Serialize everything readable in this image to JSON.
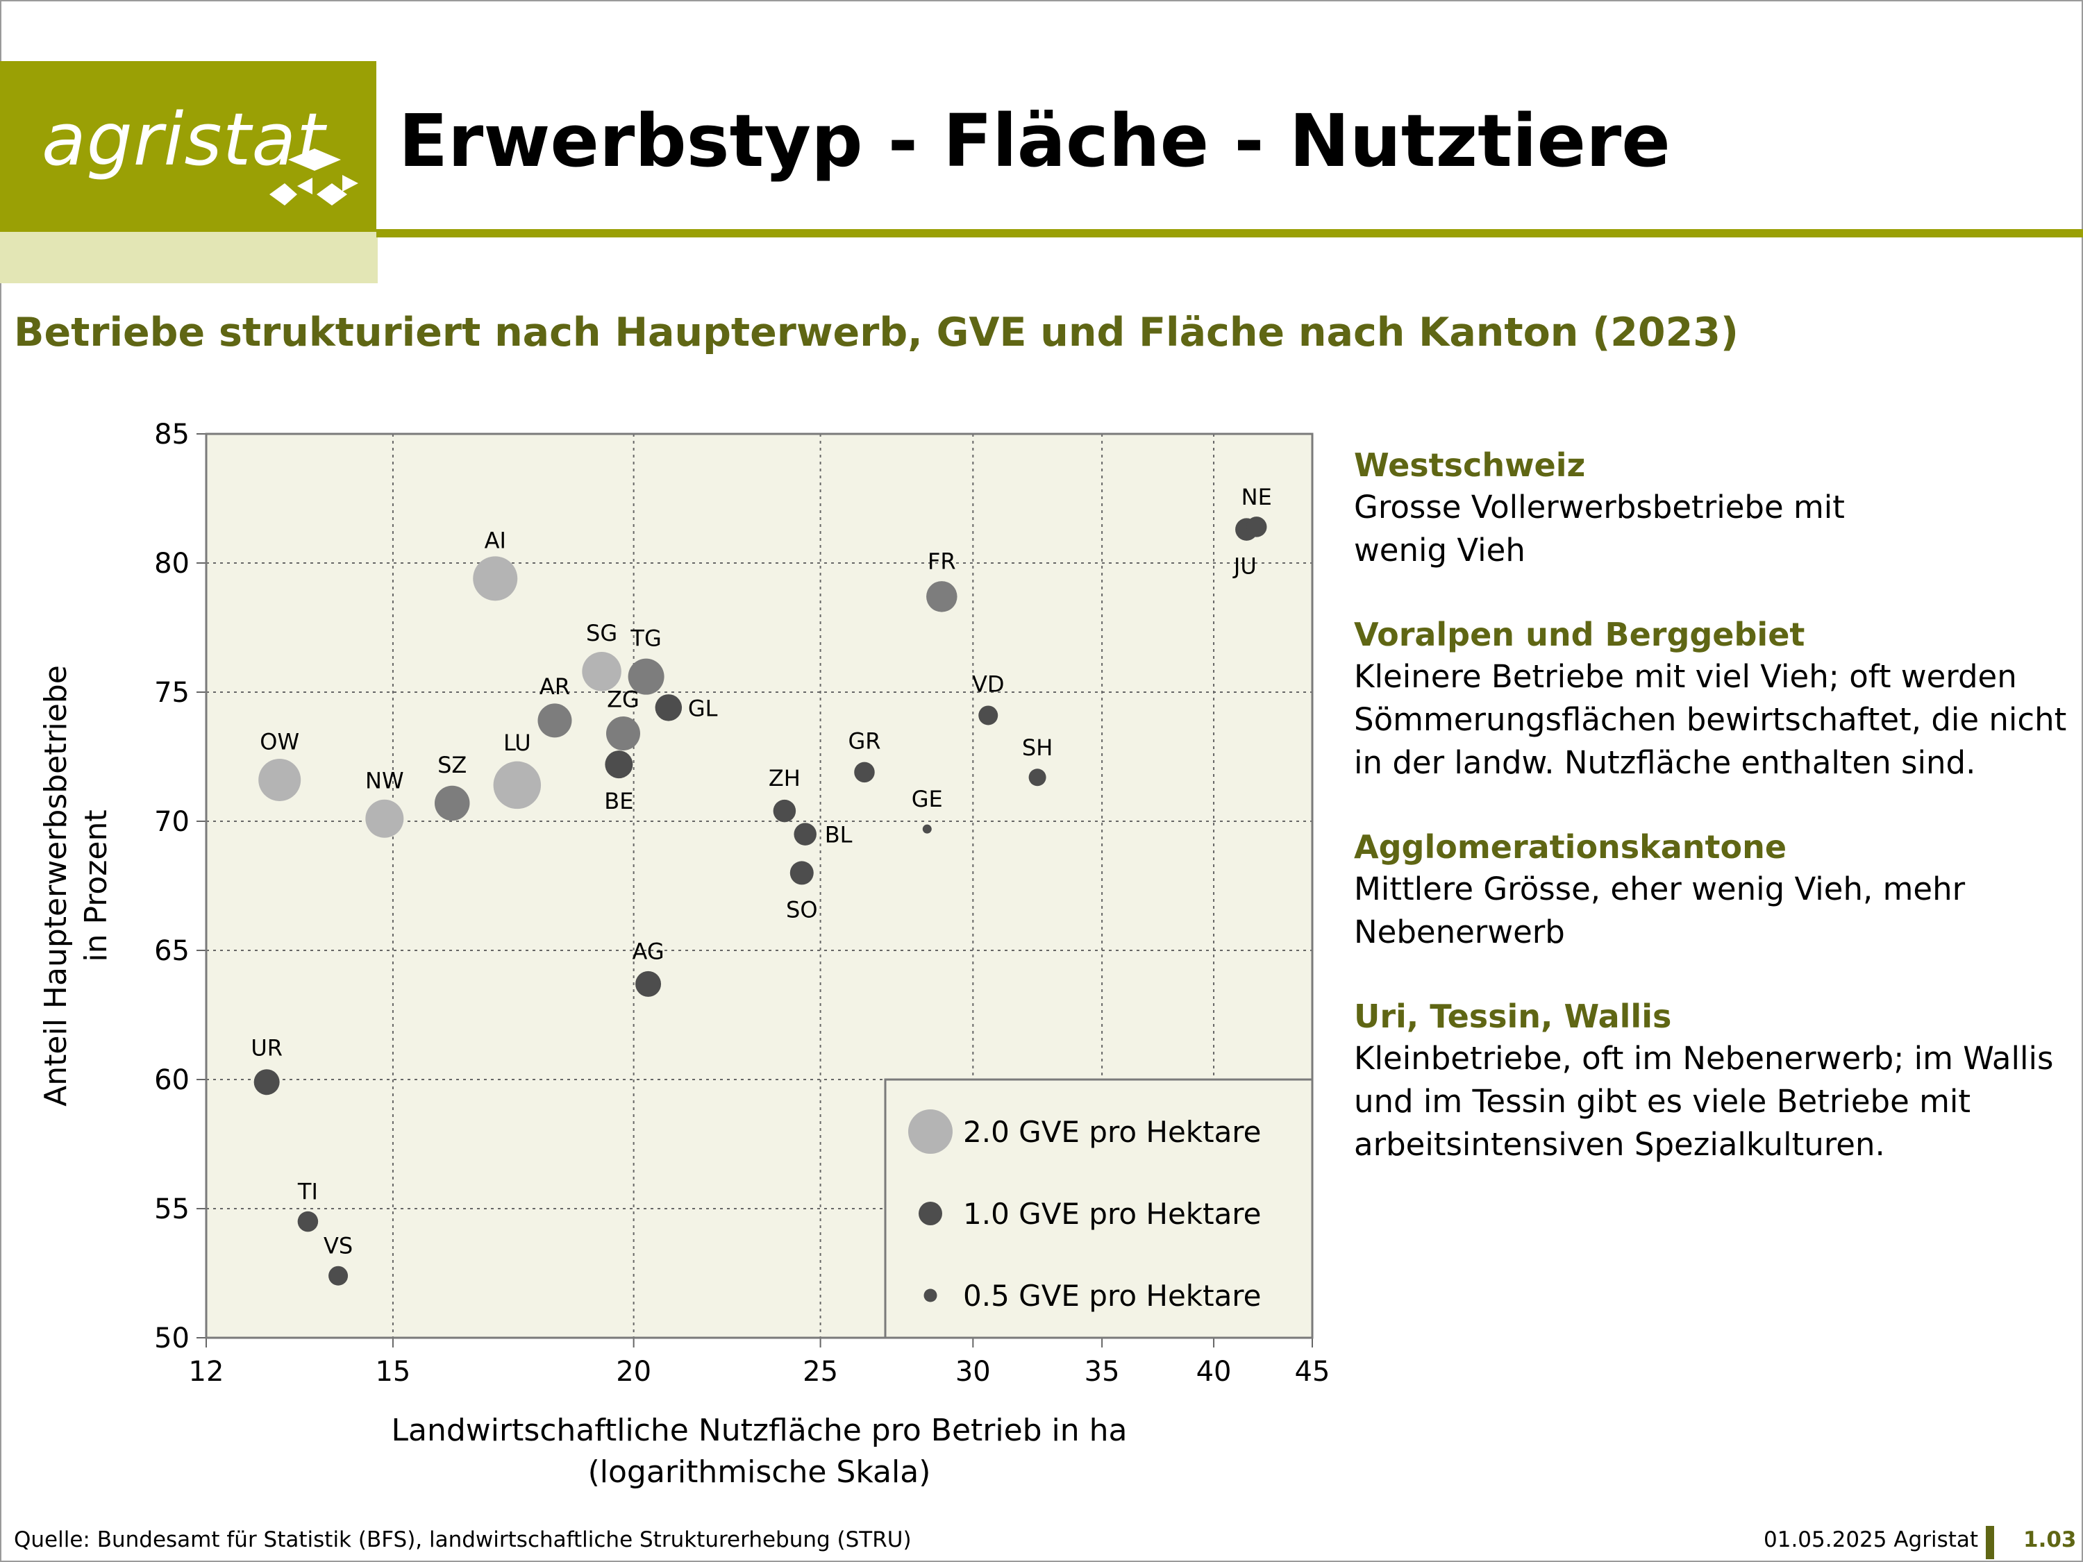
{
  "header": {
    "logo_text": "agristat",
    "title": "Erwerbstyp - Fläche - Nutztiere",
    "subtitle": "Betriebe strukturiert nach Haupterwerb, GVE und Fläche nach Kanton (2023)"
  },
  "colors": {
    "brand": "#9aa005",
    "brand_light": "#e3e6b5",
    "accent_text": "#5f6614",
    "plot_bg": "#f3f3e6",
    "dot_light": "#b4b4b4",
    "dot_mid": "#7d7d7d",
    "dot_dark": "#4d4d4d"
  },
  "chart_data": {
    "type": "scatter",
    "title": "",
    "xlabel": [
      "Landwirtschaftliche Nutzfläche pro Betrieb in ha",
      "(logarithmische Skala)"
    ],
    "ylabel": [
      "Anteil Haupterwerbsbetriebe",
      "in Prozent"
    ],
    "x_scale": "log",
    "xlim": [
      12,
      45
    ],
    "ylim": [
      50,
      85
    ],
    "x_ticks": [
      12,
      15,
      20,
      25,
      30,
      35,
      40,
      45
    ],
    "y_ticks": [
      50,
      55,
      60,
      65,
      70,
      75,
      80,
      85
    ],
    "grid": true,
    "size_variable": "GVE pro Hektare",
    "points": [
      {
        "label": "OW",
        "x": 13.1,
        "y": 71.6,
        "gve": 1.9
      },
      {
        "label": "NW",
        "x": 14.85,
        "y": 70.1,
        "gve": 1.7
      },
      {
        "label": "SZ",
        "x": 16.1,
        "y": 70.7,
        "gve": 1.55
      },
      {
        "label": "LU",
        "x": 17.4,
        "y": 71.4,
        "gve": 2.15
      },
      {
        "label": "AI",
        "x": 16.95,
        "y": 79.4,
        "gve": 2.0
      },
      {
        "label": "AR",
        "x": 18.2,
        "y": 73.9,
        "gve": 1.5
      },
      {
        "label": "SG",
        "x": 19.25,
        "y": 75.8,
        "gve": 1.75
      },
      {
        "label": "TG",
        "x": 20.3,
        "y": 75.6,
        "gve": 1.6
      },
      {
        "label": "ZG",
        "x": 19.75,
        "y": 73.4,
        "gve": 1.5
      },
      {
        "label": "BE",
        "x": 19.65,
        "y": 72.2,
        "gve": 1.2
      },
      {
        "label": "GL",
        "x": 20.85,
        "y": 74.4,
        "gve": 1.15
      },
      {
        "label": "AG",
        "x": 20.35,
        "y": 63.7,
        "gve": 1.1
      },
      {
        "label": "ZH",
        "x": 23.95,
        "y": 70.4,
        "gve": 0.95
      },
      {
        "label": "BL",
        "x": 24.55,
        "y": 69.5,
        "gve": 0.95
      },
      {
        "label": "SO",
        "x": 24.45,
        "y": 68.0,
        "gve": 1.0
      },
      {
        "label": "GR",
        "x": 26.35,
        "y": 71.9,
        "gve": 0.85
      },
      {
        "label": "GE",
        "x": 28.4,
        "y": 69.7,
        "gve": 0.3
      },
      {
        "label": "FR",
        "x": 28.9,
        "y": 78.7,
        "gve": 1.35
      },
      {
        "label": "VD",
        "x": 30.55,
        "y": 74.1,
        "gve": 0.8
      },
      {
        "label": "SH",
        "x": 32.4,
        "y": 71.7,
        "gve": 0.7
      },
      {
        "label": "JU",
        "x": 41.6,
        "y": 81.3,
        "gve": 0.95
      },
      {
        "label": "NE",
        "x": 42.1,
        "y": 81.4,
        "gve": 0.85
      },
      {
        "label": "UR",
        "x": 12.9,
        "y": 59.9,
        "gve": 1.1
      },
      {
        "label": "TI",
        "x": 13.55,
        "y": 54.5,
        "gve": 0.85
      },
      {
        "label": "VS",
        "x": 14.05,
        "y": 52.4,
        "gve": 0.8
      }
    ],
    "legend": {
      "placement": "bottom-right",
      "entries": [
        {
          "label": "2.0 GVE pro Hektare",
          "gve": 2.0
        },
        {
          "label": "1.0 GVE pro Hektare",
          "gve": 1.0
        },
        {
          "label": "0.5 GVE pro Hektare",
          "gve": 0.5
        }
      ]
    }
  },
  "notes": [
    {
      "heading": "Westschweiz",
      "text": "Grosse Vollerwerbsbetriebe mit wenig Vieh"
    },
    {
      "heading": "Voralpen und Berggebiet",
      "text": "Kleinere Betriebe mit viel Vieh; oft werden Sömmerungsflächen bewirtschaftet, die nicht in der landw. Nutzfläche enthalten sind."
    },
    {
      "heading": "Agglomerationskantone",
      "text": "Mittlere Grösse, eher wenig Vieh, mehr Nebenerwerb"
    },
    {
      "heading": "Uri, Tessin, Wallis",
      "text": "Kleinbetriebe, oft im Nebenerwerb; im Wallis und im Tessin gibt es viele Betriebe mit arbeitsintensiven Spezialkulturen."
    }
  ],
  "footer": {
    "source": "Quelle: Bundesamt für Statistik (BFS), landwirtschaftliche Strukturerhebung (STRU)",
    "date": "01.05.2025 Agristat",
    "page": "1.03"
  }
}
